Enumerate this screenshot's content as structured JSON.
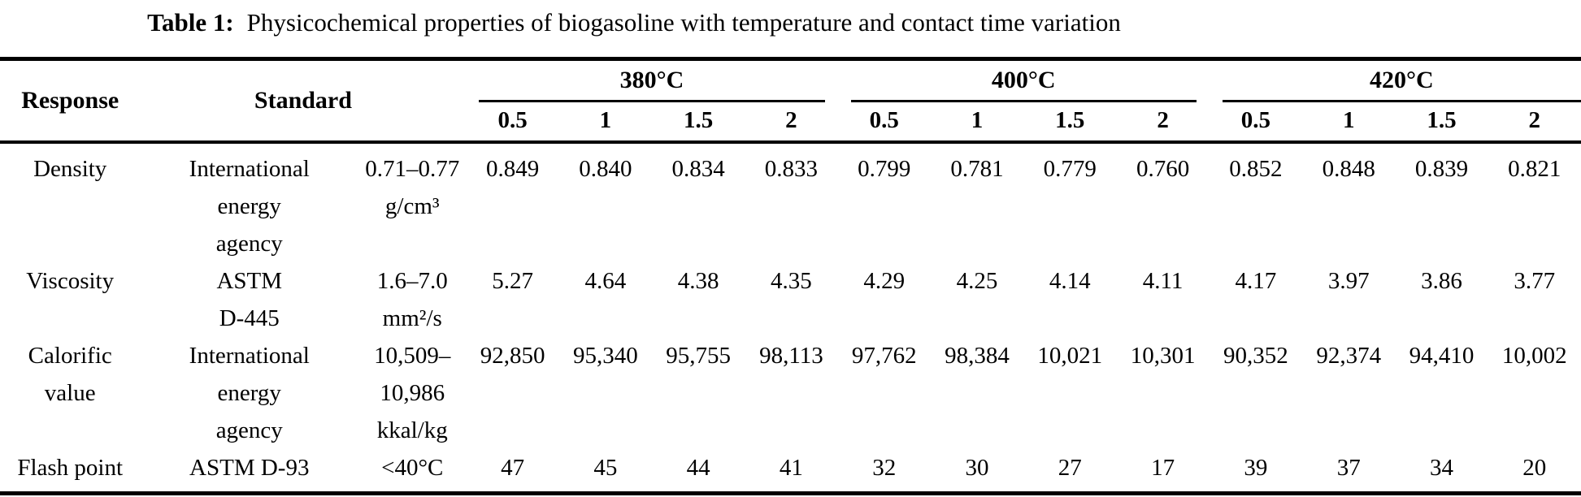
{
  "colors": {
    "background": "#ffffff",
    "text": "#000000",
    "rule": "#000000"
  },
  "caption": {
    "label": "Table 1:",
    "text": "Physicochemical properties of biogasoline with temperature and contact time variation"
  },
  "table": {
    "headers": {
      "response": "Response",
      "standard": "Standard"
    },
    "temp_groups": [
      {
        "label": "380°C"
      },
      {
        "label": "400°C"
      },
      {
        "label": "420°C"
      }
    ],
    "contact_times": [
      "0.5",
      "1",
      "1.5",
      "2"
    ],
    "rows": [
      {
        "response": "Density",
        "standard": "International\nenergy\nagency",
        "standard_range": "0.71–0.77\ng/cm³",
        "values": [
          "0.849",
          "0.840",
          "0.834",
          "0.833",
          "0.799",
          "0.781",
          "0.779",
          "0.760",
          "0.852",
          "0.848",
          "0.839",
          "0.821"
        ]
      },
      {
        "response": "Viscosity",
        "standard": "ASTM\nD-445",
        "standard_range": "1.6–7.0\nmm²/s",
        "values": [
          "5.27",
          "4.64",
          "4.38",
          "4.35",
          "4.29",
          "4.25",
          "4.14",
          "4.11",
          "4.17",
          "3.97",
          "3.86",
          "3.77"
        ]
      },
      {
        "response": "Calorific\nvalue",
        "standard": "International\nenergy\nagency",
        "standard_range": "10,509–\n10,986\nkkal/kg",
        "values": [
          "92,850",
          "95,340",
          "95,755",
          "98,113",
          "97,762",
          "98,384",
          "10,021",
          "10,301",
          "90,352",
          "92,374",
          "94,410",
          "10,002"
        ]
      },
      {
        "response": "Flash point",
        "standard": "ASTM D-93",
        "standard_range": "<40°C",
        "values": [
          "47",
          "45",
          "44",
          "41",
          "32",
          "30",
          "27",
          "17",
          "39",
          "37",
          "34",
          "20"
        ]
      }
    ]
  }
}
